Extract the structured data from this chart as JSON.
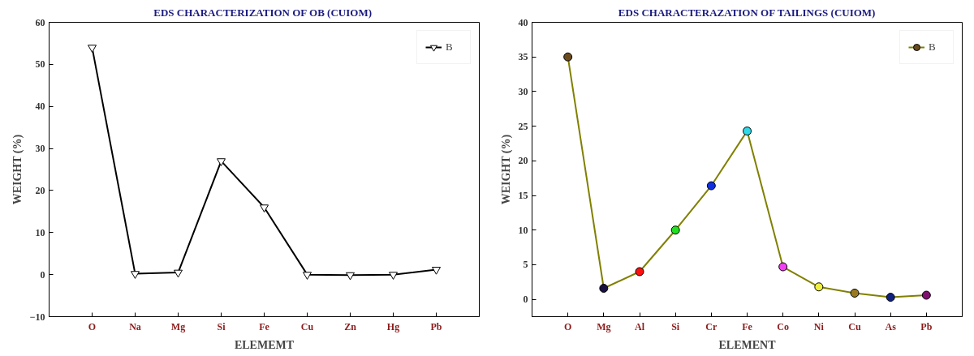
{
  "chart_data": [
    {
      "type": "line",
      "title": "EDS CHARACTERIZATION  OF OB (CUIOM)",
      "xlabel": "ELEMEMT",
      "ylabel": "WEIGHT (%)",
      "categories": [
        "O",
        "Na",
        "Mg",
        "Si",
        "Fe",
        "Cu",
        "Zn",
        "Hg",
        "Pb"
      ],
      "series": [
        {
          "name": "B",
          "color": "#000000",
          "values": [
            54,
            0.2,
            0.5,
            27,
            16,
            0,
            -0.1,
            0,
            1.2
          ]
        }
      ],
      "ylim": [
        -10,
        60
      ],
      "yticks": [
        -10,
        0,
        10,
        20,
        30,
        40,
        50,
        60
      ],
      "marker": "triangle",
      "legend": "top right",
      "grid": false
    },
    {
      "type": "line",
      "title": "EDS CHARACTERAZATION OF TAILINGS (CUIOM)",
      "xlabel": "ELEMENT",
      "ylabel": "WEIGHT (%)",
      "categories": [
        "O",
        "Mg",
        "Al",
        "Si",
        "Cr",
        "Fe",
        "Co",
        "Ni",
        "Cu",
        "As",
        "Pb"
      ],
      "series": [
        {
          "name": "B",
          "color": "#808000",
          "values": [
            35,
            1.6,
            4,
            10,
            16.4,
            24.3,
            4.7,
            1.8,
            0.9,
            0.3,
            0.6
          ],
          "colors": [
            "#6b4a1e",
            "#1a1040",
            "#ff1010",
            "#20e020",
            "#1030e0",
            "#30d8e8",
            "#f040f0",
            "#f0f040",
            "#9a7a20",
            "#102080",
            "#801070"
          ]
        }
      ],
      "ylim": [
        -2.5,
        40
      ],
      "yticks": [
        0,
        5,
        10,
        15,
        20,
        25,
        30,
        35,
        40
      ],
      "marker": "circle",
      "legend": "top right",
      "grid": false
    }
  ]
}
